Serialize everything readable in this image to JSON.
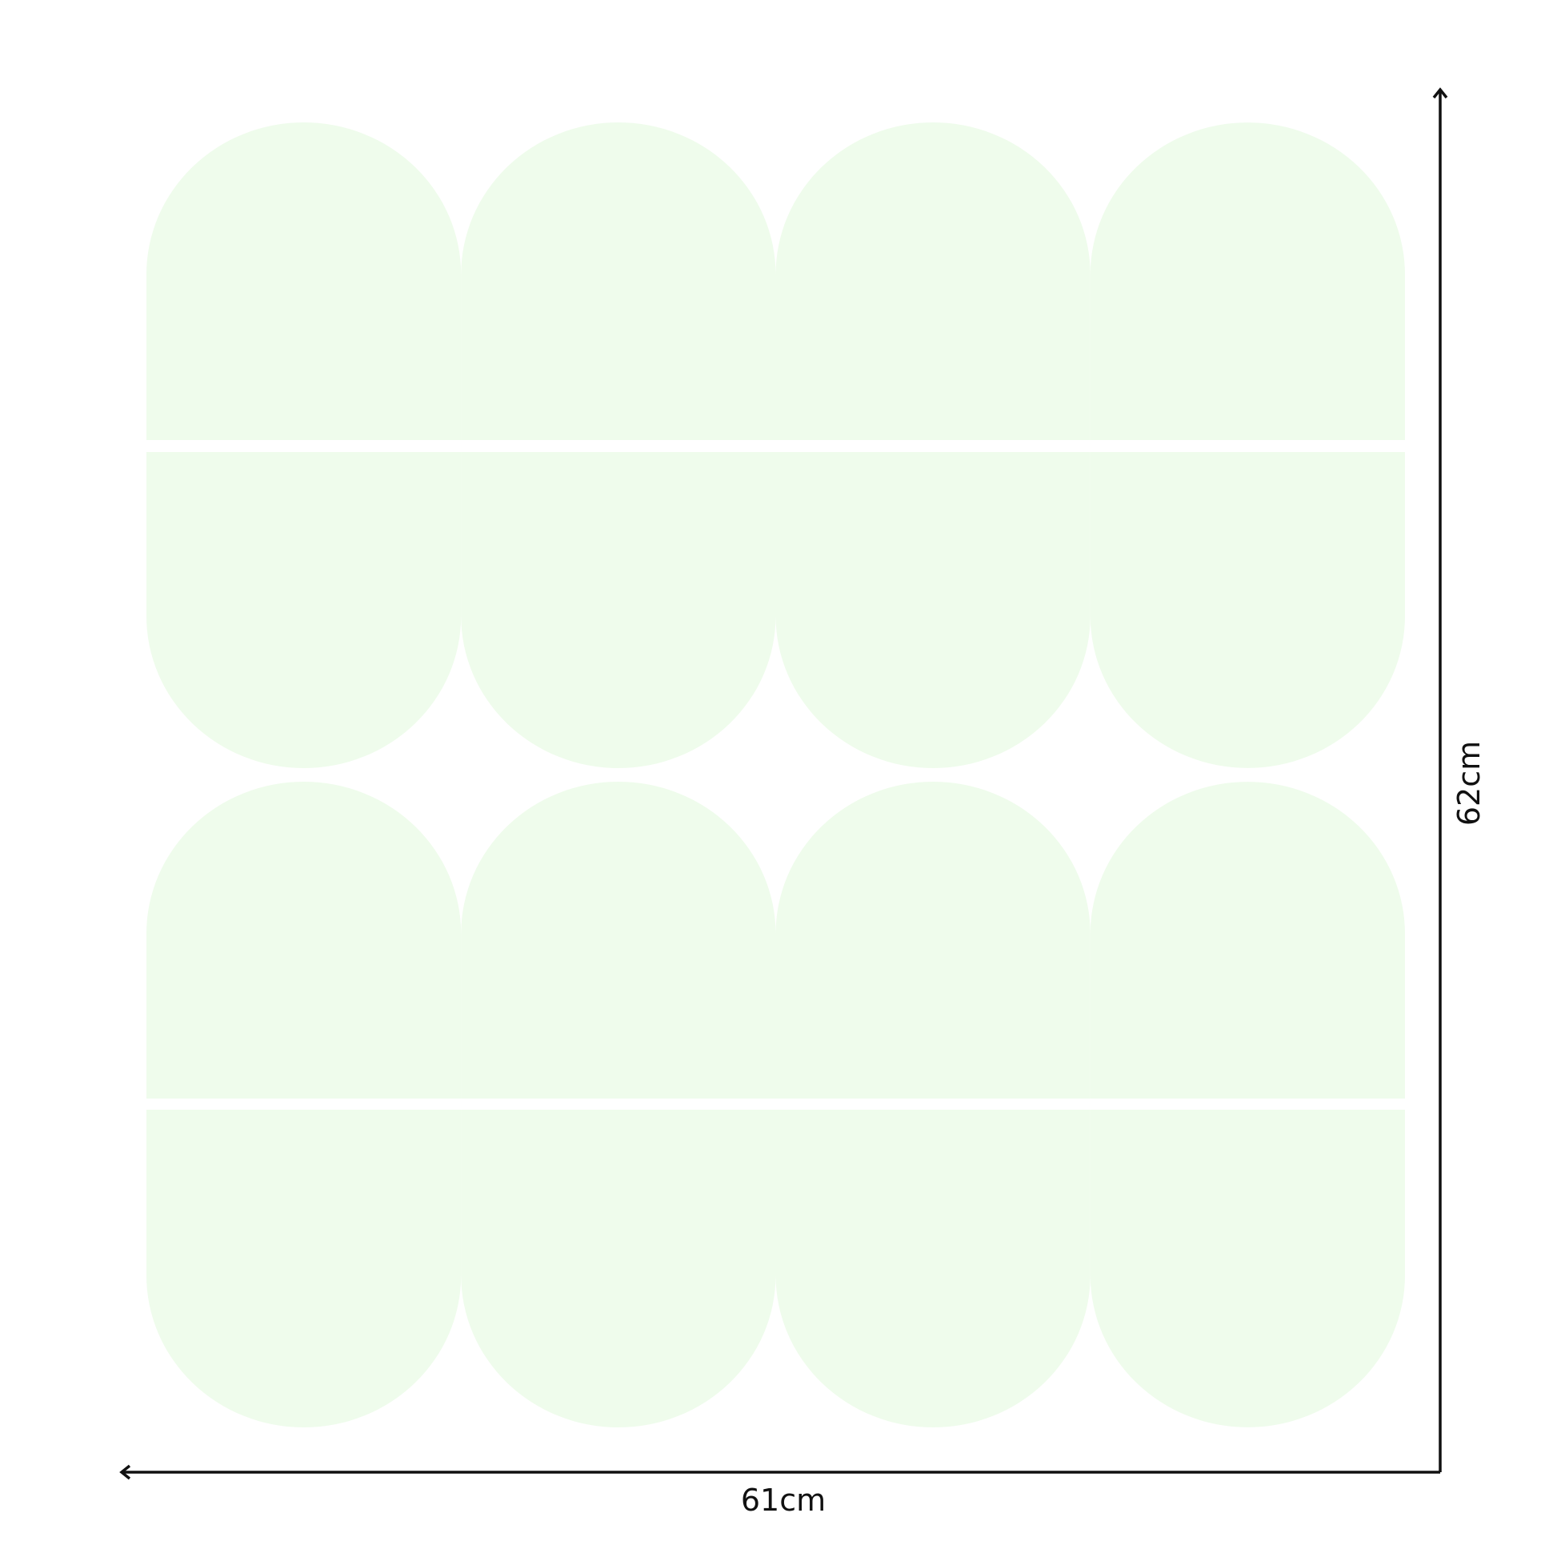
{
  "diagram": {
    "width_label": "61cm",
    "height_label": "62cm",
    "panel_color": "#effcec",
    "arrow_color": "#111111",
    "units": 2,
    "columns_per_unit": 4
  }
}
